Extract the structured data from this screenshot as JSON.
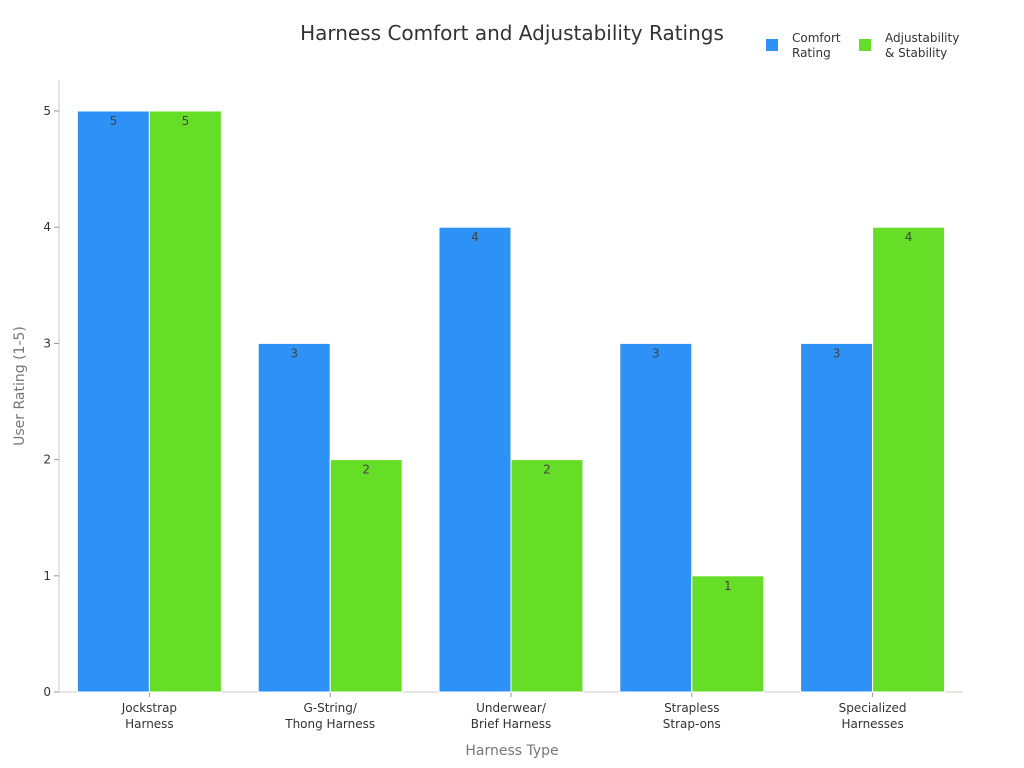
{
  "chart_data": {
    "type": "bar",
    "title": "Harness Comfort and Adjustability Ratings",
    "xlabel": "Harness Type",
    "ylabel": "User Rating (1-5)",
    "categories": [
      [
        "Jockstrap",
        "Harness"
      ],
      [
        "G-String/",
        "Thong Harness"
      ],
      [
        "Underwear/",
        "Brief Harness"
      ],
      [
        "Strapless",
        "Strap-ons"
      ],
      [
        "Specialized",
        "Harnesses"
      ]
    ],
    "series": [
      {
        "name": [
          "Comfort",
          "Rating"
        ],
        "color": "#2e91f6",
        "values": [
          5,
          3,
          4,
          3,
          3
        ]
      },
      {
        "name": [
          "Adjustability",
          "& Stability"
        ],
        "color": "#66dd26",
        "values": [
          5,
          2,
          2,
          1,
          4
        ]
      }
    ],
    "ylim": [
      0,
      5
    ],
    "yticks": [
      0,
      1,
      2,
      3,
      4,
      5
    ],
    "grid": false,
    "legend_position": "top-right",
    "axis_color": "#cccccc"
  }
}
